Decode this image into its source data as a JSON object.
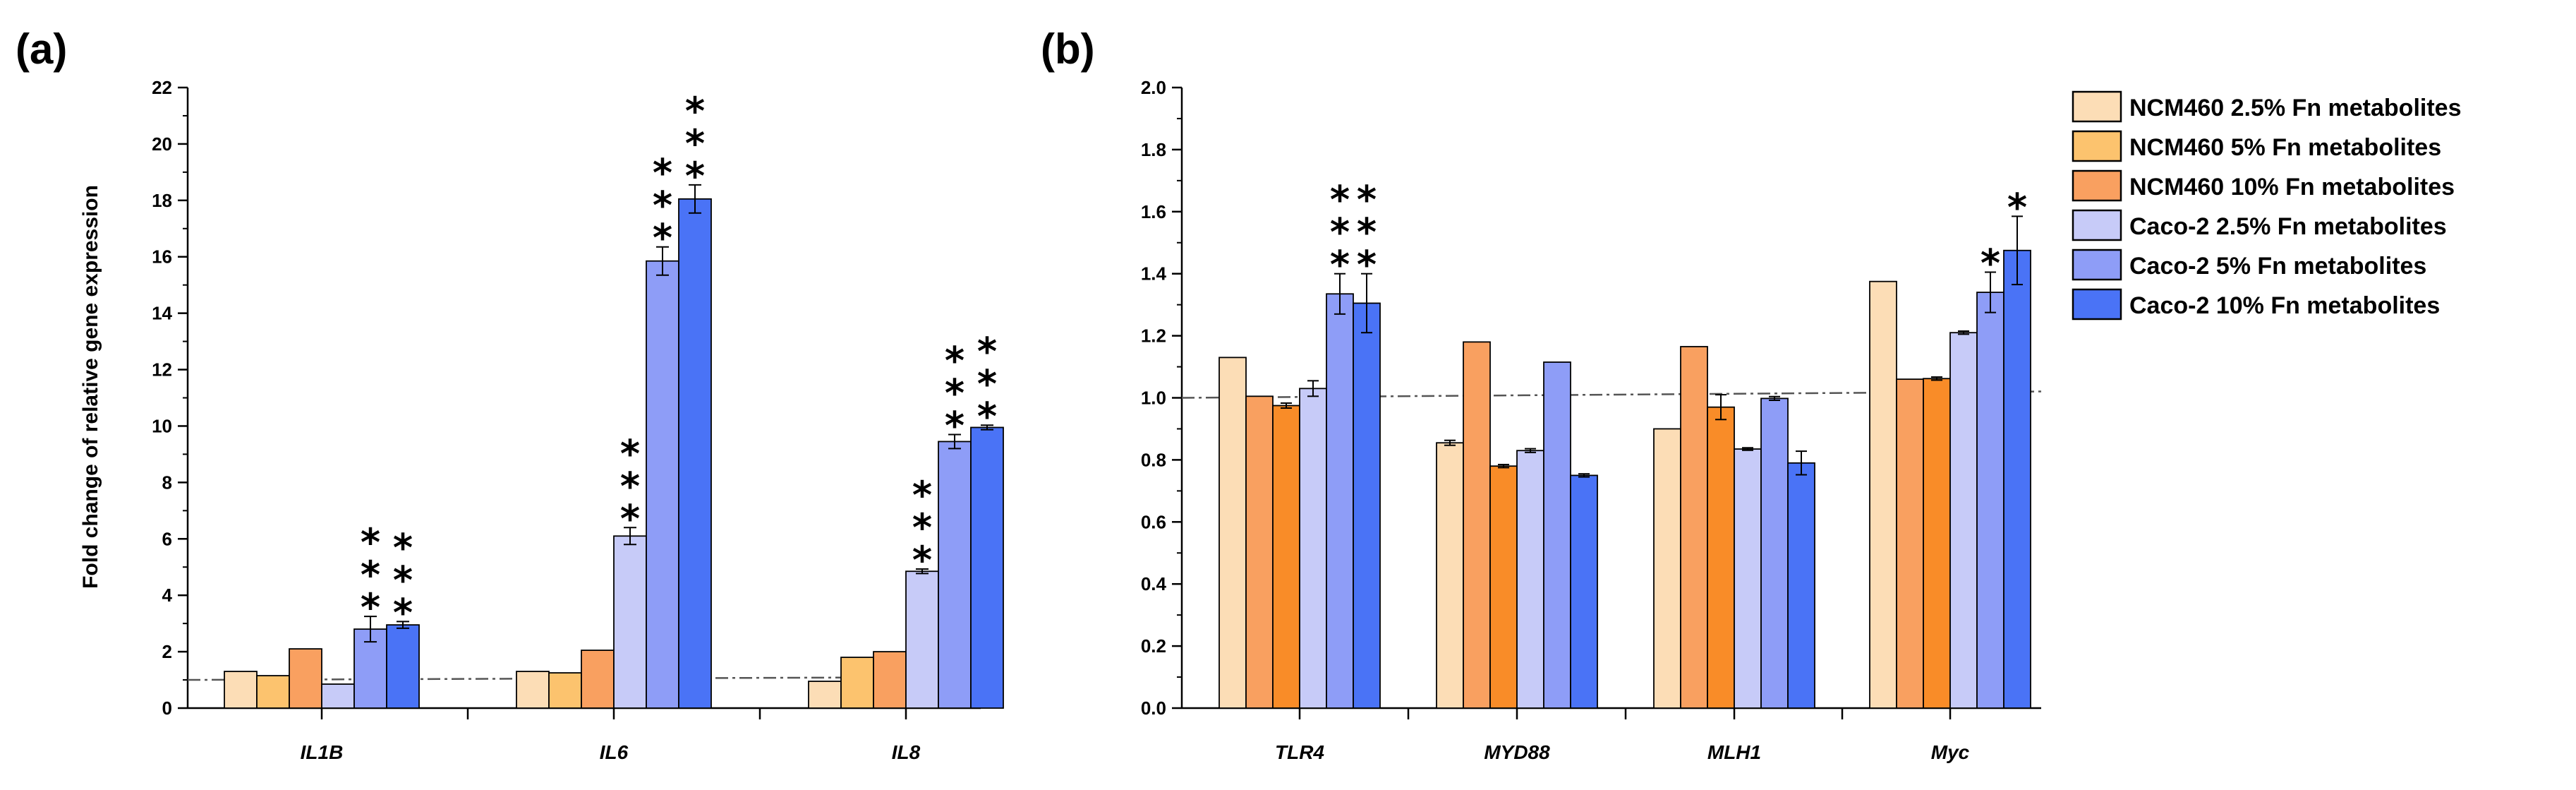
{
  "legend": [
    {
      "name": "NCM460 2.5% Fn metabolites",
      "color": "#FCDDB6"
    },
    {
      "name": "NCM460 5% Fn metabolites",
      "color": "#FCC36E"
    },
    {
      "name": "NCM460 10% Fn metabolites",
      "color": "#F9A060"
    },
    {
      "name": "Caco-2 2.5% Fn metabolites",
      "color": "#C7CBF8"
    },
    {
      "name": "Caco-2 5% Fn metabolites",
      "color": "#8E9DF7"
    },
    {
      "name": "Caco-2 10% Fn metabolites",
      "color": "#4A73F6"
    }
  ],
  "chart_data": [
    {
      "panel_label": "(a)",
      "type": "bar",
      "title": "",
      "xlabel": "",
      "ylabel": "Fold change of relative gene expression",
      "ylim": [
        0,
        22
      ],
      "yticks": [
        "0",
        "2",
        "4",
        "6",
        "8",
        "10",
        "12",
        "14",
        "16",
        "18",
        "20",
        "22"
      ],
      "reference_line": 1.0,
      "categories": [
        "IL1B",
        "IL6",
        "IL8"
      ],
      "colors": [
        "#FCDDB6",
        "#FCC36E",
        "#F9A060",
        "#C7CBF8",
        "#8E9DF7",
        "#4A73F6"
      ],
      "series": [
        {
          "name": "NCM460 2.5% Fn metabolites",
          "values": [
            1.3,
            1.3,
            0.95
          ],
          "errors": [
            0,
            0,
            0
          ]
        },
        {
          "name": "NCM460 5% Fn metabolites",
          "values": [
            1.15,
            1.25,
            1.8
          ],
          "errors": [
            0,
            0,
            0
          ]
        },
        {
          "name": "NCM460 10% Fn metabolites",
          "values": [
            2.1,
            2.05,
            2.0
          ],
          "errors": [
            0,
            0,
            0
          ]
        },
        {
          "name": "Caco-2 2.5% Fn metabolites",
          "values": [
            0.85,
            6.1,
            4.85
          ],
          "errors": [
            0,
            0.3,
            0.08
          ]
        },
        {
          "name": "Caco-2 5% Fn metabolites",
          "values": [
            2.8,
            15.85,
            9.45
          ],
          "errors": [
            0.45,
            0.5,
            0.25
          ]
        },
        {
          "name": "Caco-2 10% Fn metabolites",
          "values": [
            2.95,
            18.05,
            9.95
          ],
          "errors": [
            0.12,
            0.5,
            0.08
          ]
        }
      ],
      "significance": [
        {
          "category": "IL1B",
          "series": 4,
          "mark": "***"
        },
        {
          "category": "IL1B",
          "series": 5,
          "mark": "***"
        },
        {
          "category": "IL6",
          "series": 3,
          "mark": "***"
        },
        {
          "category": "IL6",
          "series": 4,
          "mark": "***"
        },
        {
          "category": "IL6",
          "series": 5,
          "mark": "***"
        },
        {
          "category": "IL8",
          "series": 3,
          "mark": "***"
        },
        {
          "category": "IL8",
          "series": 4,
          "mark": "***"
        },
        {
          "category": "IL8",
          "series": 5,
          "mark": "***"
        }
      ]
    },
    {
      "panel_label": "(b)",
      "type": "bar",
      "title": "",
      "xlabel": "",
      "ylabel": "",
      "ylim": [
        0,
        2.0
      ],
      "yticks": [
        "0.0",
        "0.2",
        "0.4",
        "0.6",
        "0.8",
        "1.0",
        "1.2",
        "1.4",
        "1.6",
        "1.8",
        "2.0"
      ],
      "reference_line": 1.0,
      "categories": [
        "TLR4",
        "MYD88",
        "MLH1",
        "Myc"
      ],
      "colors": [
        "#FCDDB6",
        "#F9A060",
        "#F98C28",
        "#C7CBF8",
        "#8E9DF7",
        "#4A73F6"
      ],
      "series": [
        {
          "name": "NCM460 2.5% Fn metabolites",
          "values": [
            1.13,
            0.855,
            0.9,
            1.375
          ],
          "errors": [
            0,
            0.008,
            0,
            0
          ]
        },
        {
          "name": "NCM460 5% Fn metabolites",
          "values": [
            1.005,
            1.18,
            1.165,
            1.06
          ],
          "errors": [
            0,
            0,
            0,
            0
          ]
        },
        {
          "name": "NCM460 10% Fn metabolites",
          "values": [
            0.975,
            0.78,
            0.97,
            1.062
          ],
          "errors": [
            0.008,
            0.005,
            0.04,
            0.005
          ]
        },
        {
          "name": "Caco-2 2.5% Fn metabolites",
          "values": [
            1.03,
            0.83,
            0.835,
            1.21
          ],
          "errors": [
            0.025,
            0.006,
            0.004,
            0.005
          ]
        },
        {
          "name": "Caco-2 5% Fn metabolites",
          "values": [
            1.335,
            1.115,
            0.998,
            1.34
          ],
          "errors": [
            0.065,
            0,
            0.006,
            0.065
          ]
        },
        {
          "name": "Caco-2 10% Fn metabolites",
          "values": [
            1.305,
            0.75,
            0.79,
            1.475
          ],
          "errors": [
            0.095,
            0.005,
            0.038,
            0.11
          ]
        }
      ],
      "significance": [
        {
          "category": "TLR4",
          "series": 4,
          "mark": "***"
        },
        {
          "category": "TLR4",
          "series": 5,
          "mark": "***"
        },
        {
          "category": "Myc",
          "series": 4,
          "mark": "*"
        },
        {
          "category": "Myc",
          "series": 5,
          "mark": "*"
        }
      ]
    }
  ]
}
